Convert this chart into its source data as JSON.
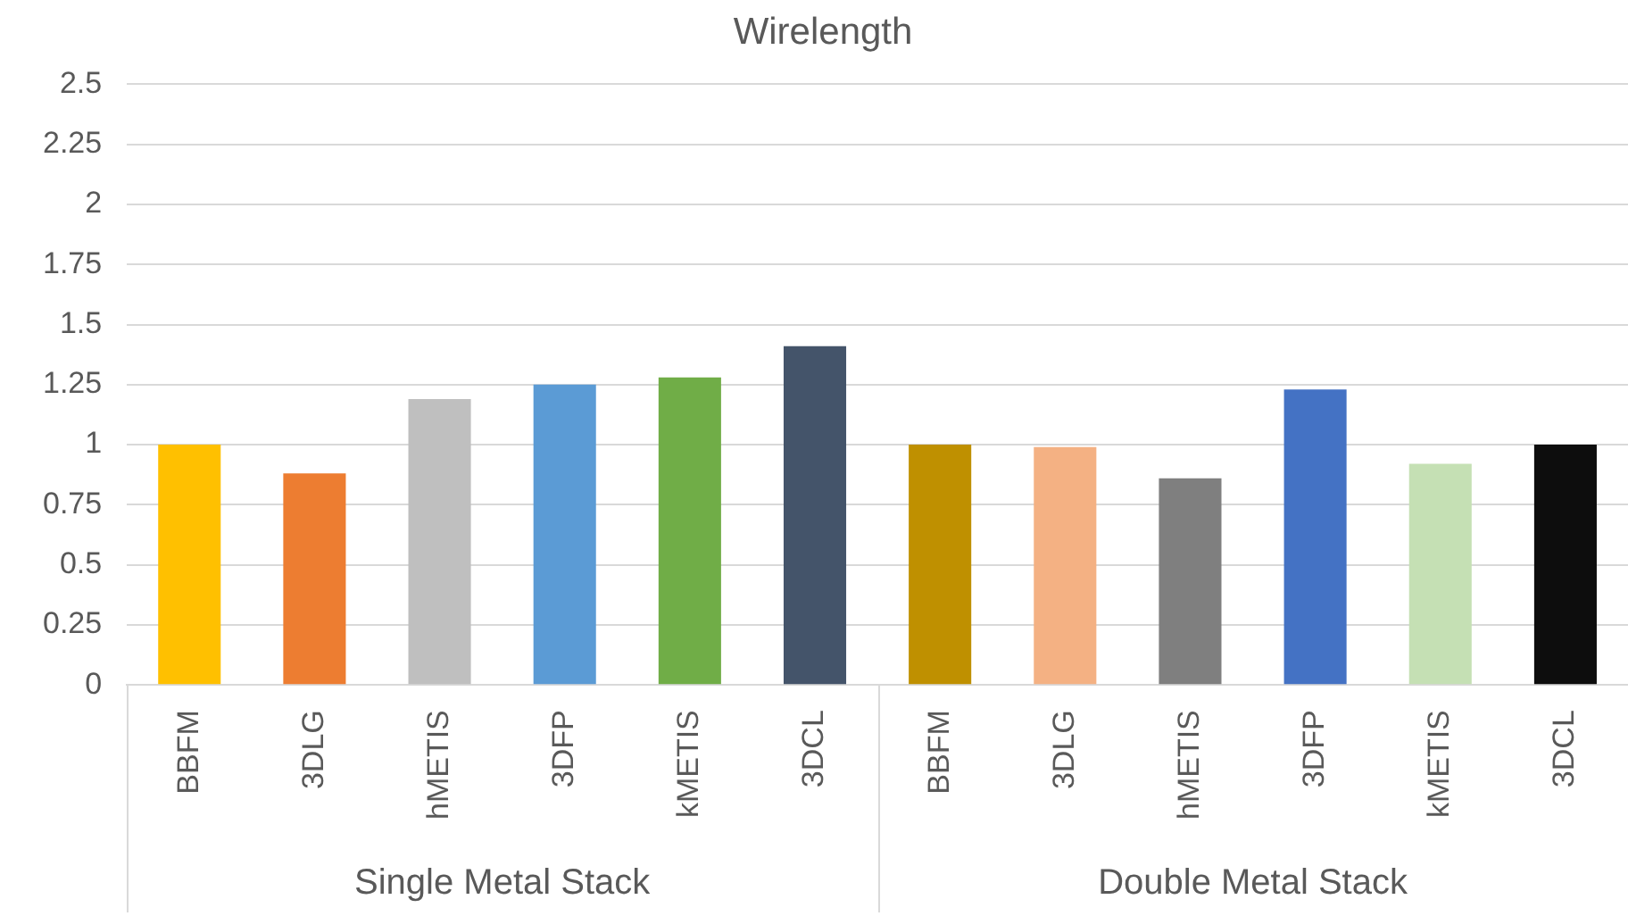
{
  "chart_data": {
    "type": "bar",
    "title": "Wirelength",
    "categories": [
      "BBFM",
      "3DLG",
      "hMETIS",
      "3DFP",
      "kMETIS",
      "3DCL",
      "BBFM",
      "3DLG",
      "hMETIS",
      "3DFP",
      "kMETIS",
      "3DCL"
    ],
    "values": [
      1.0,
      0.88,
      1.19,
      1.25,
      1.28,
      1.41,
      1.0,
      0.99,
      0.86,
      1.23,
      0.92,
      1.0
    ],
    "colors": [
      "#ffc000",
      "#ed7d31",
      "#bfbfbf",
      "#5b9bd5",
      "#70ad47",
      "#44546a",
      "#bf9000",
      "#f4b183",
      "#7f7f7f",
      "#4472c4",
      "#c5e0b4",
      "#0d0d0d"
    ],
    "ylim": [
      0,
      2.5
    ],
    "yticks": [
      0,
      0.25,
      0.5,
      0.75,
      1,
      1.25,
      1.5,
      1.75,
      2,
      2.25,
      2.5
    ],
    "grid": "y",
    "legend": false,
    "annotations": [
      "Single Metal Stack",
      "Double Metal Stack"
    ]
  }
}
